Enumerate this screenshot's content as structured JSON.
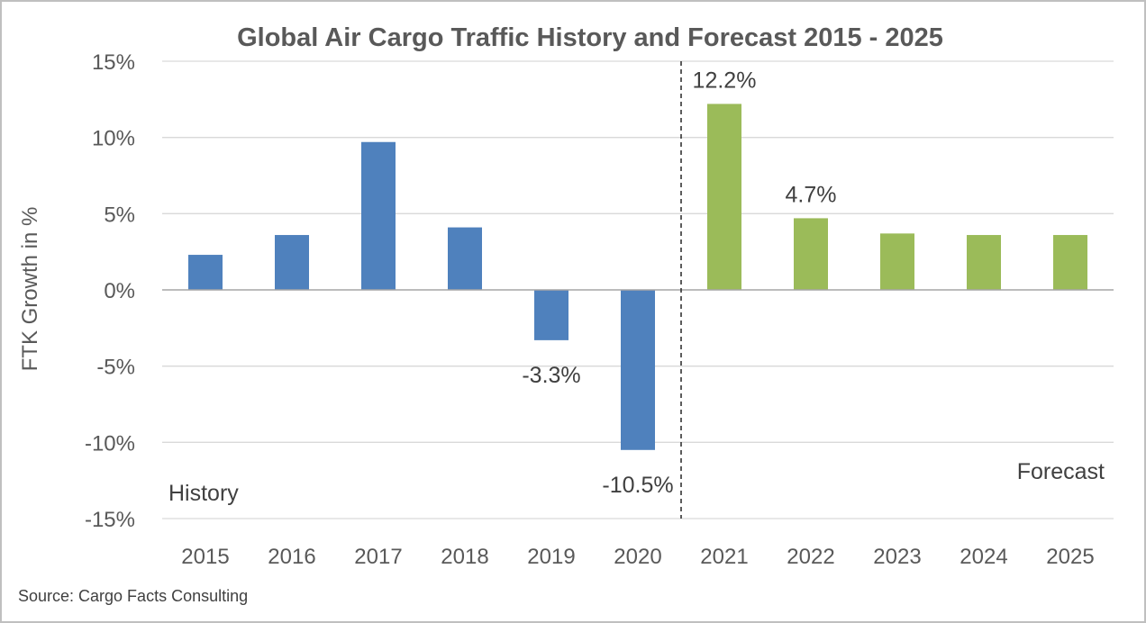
{
  "colors": {
    "history": "#4f81bd",
    "forecast": "#9bbb59",
    "grid": "#d9d9d9",
    "text": "#595959"
  },
  "source": "Source: Cargo Facts Consulting",
  "chart_data": {
    "type": "bar",
    "title": "Global Air Cargo Traffic History and Forecast 2015 - 2025",
    "xlabel": "",
    "ylabel": "FTK Growth in %",
    "ylim": [
      -15,
      15
    ],
    "yticks": [
      15,
      10,
      5,
      0,
      -5,
      -10,
      -15
    ],
    "ytick_labels": [
      "15%",
      "10%",
      "5%",
      "0%",
      "-5%",
      "-10%",
      "-15%"
    ],
    "grid": true,
    "categories": [
      "2015",
      "2016",
      "2017",
      "2018",
      "2019",
      "2020",
      "2021",
      "2022",
      "2023",
      "2024",
      "2025"
    ],
    "values": [
      2.3,
      3.6,
      9.7,
      4.1,
      -3.3,
      -10.5,
      12.2,
      4.7,
      3.7,
      3.6,
      3.6
    ],
    "groups": [
      "history",
      "history",
      "history",
      "history",
      "history",
      "history",
      "forecast",
      "forecast",
      "forecast",
      "forecast",
      "forecast"
    ],
    "data_labels": {
      "2019": "-3.3%",
      "2020": "-10.5%",
      "2021": "12.2%",
      "2022": "4.7%"
    },
    "annotations": {
      "history": "History",
      "forecast": "Forecast"
    }
  }
}
